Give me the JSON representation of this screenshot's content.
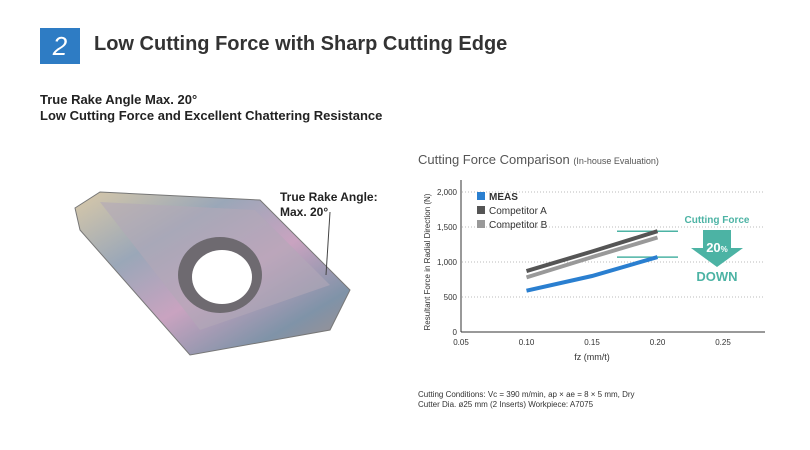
{
  "section": {
    "number": "2",
    "title": "Low Cutting Force with Sharp Cutting Edge"
  },
  "subtitle": [
    "True Rake Angle Max. 20°",
    "Low Cutting Force and Excellent Chattering Resistance"
  ],
  "callout": [
    "True Rake Angle:",
    "Max. 20°"
  ],
  "conditions": [
    "Cutting Conditions: Vc = 390 m/min, ap × ae = 8 × 5 mm, Dry",
    "Cutter Dia. ø25 mm (2 Inserts)  Workpiece: A7075"
  ],
  "chart_data": {
    "type": "line",
    "title": "Cutting Force Comparison",
    "title_note": "(In-house Evaluation)",
    "xlabel": "fz (mm/t)",
    "ylabel": "Resultant Force in Radial Direction (N)",
    "xlim": [
      0.05,
      0.28
    ],
    "ylim": [
      0,
      2000
    ],
    "xticks": [
      "0.05",
      "0.10",
      "0.15",
      "0.20",
      "0.25"
    ],
    "xtick_values": [
      0.05,
      0.1,
      0.15,
      0.2,
      0.25
    ],
    "yticks": [
      "0",
      "500",
      "1,000",
      "1,500",
      "2,000"
    ],
    "ytick_values": [
      0,
      500,
      1000,
      1500,
      2000
    ],
    "x": [
      0.1,
      0.15,
      0.2
    ],
    "series": [
      {
        "name": "MEAS",
        "color": "#2a7fd0",
        "values": [
          590,
          800,
          1070
        ]
      },
      {
        "name": "Competitor A",
        "color": "#555555",
        "values": [
          870,
          1150,
          1440
        ]
      },
      {
        "name": "Competitor B",
        "color": "#999999",
        "values": [
          780,
          1070,
          1350
        ]
      }
    ],
    "legend": "top-left",
    "annotation": {
      "top": "Cutting Force",
      "percent": "20",
      "unit": "%",
      "bottom": "DOWN",
      "color": "#4cb3a4"
    }
  }
}
